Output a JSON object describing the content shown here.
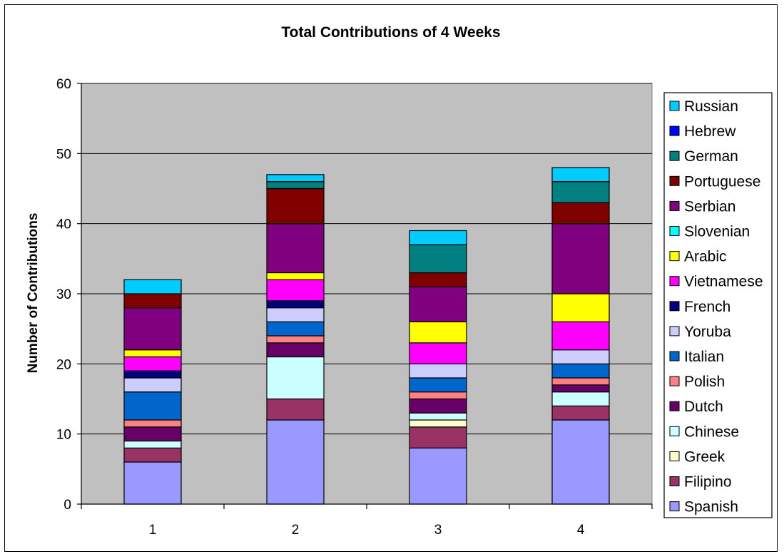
{
  "chart_data": {
    "type": "bar",
    "stacked": true,
    "title": "Total Contributions of 4 Weeks",
    "xlabel": "",
    "ylabel": "Number of Contributions",
    "categories": [
      "1",
      "2",
      "3",
      "4"
    ],
    "ylim": [
      0,
      60
    ],
    "yticks": [
      "0",
      "10",
      "20",
      "30",
      "40",
      "50",
      "60"
    ],
    "grid": true,
    "legend_position": "right",
    "plot_background": "#C0C0C0",
    "series": [
      {
        "name": "Spanish",
        "color": "#9999FF",
        "values": [
          6,
          12,
          8,
          12
        ]
      },
      {
        "name": "Filipino",
        "color": "#993366",
        "values": [
          2,
          3,
          3,
          2
        ]
      },
      {
        "name": "Greek",
        "color": "#FFFFCC",
        "values": [
          0,
          0,
          1,
          0
        ]
      },
      {
        "name": "Chinese",
        "color": "#CCFFFF",
        "values": [
          1,
          6,
          1,
          2
        ]
      },
      {
        "name": "Dutch",
        "color": "#660066",
        "values": [
          2,
          2,
          2,
          1
        ]
      },
      {
        "name": "Polish",
        "color": "#FF8080",
        "values": [
          1,
          1,
          1,
          1
        ]
      },
      {
        "name": "Italian",
        "color": "#0066CC",
        "values": [
          4,
          2,
          2,
          2
        ]
      },
      {
        "name": "Yoruba",
        "color": "#CCCCFF",
        "values": [
          2,
          2,
          2,
          2
        ]
      },
      {
        "name": "French",
        "color": "#000080",
        "values": [
          1,
          1,
          0,
          0
        ]
      },
      {
        "name": "Vietnamese",
        "color": "#FF00FF",
        "values": [
          2,
          3,
          3,
          4
        ]
      },
      {
        "name": "Arabic",
        "color": "#FFFF00",
        "values": [
          1,
          1,
          3,
          4
        ]
      },
      {
        "name": "Slovenian",
        "color": "#00FFFF",
        "values": [
          0,
          0,
          0,
          0
        ]
      },
      {
        "name": "Serbian",
        "color": "#800080",
        "values": [
          6,
          7,
          5,
          10
        ]
      },
      {
        "name": "Portuguese",
        "color": "#800000",
        "values": [
          2,
          5,
          2,
          3
        ]
      },
      {
        "name": "German",
        "color": "#008080",
        "values": [
          0,
          1,
          4,
          3
        ]
      },
      {
        "name": "Hebrew",
        "color": "#0000FF",
        "values": [
          0,
          0,
          0,
          0
        ]
      },
      {
        "name": "Russian",
        "color": "#00CCFF",
        "values": [
          2,
          1,
          2,
          2
        ]
      }
    ]
  }
}
